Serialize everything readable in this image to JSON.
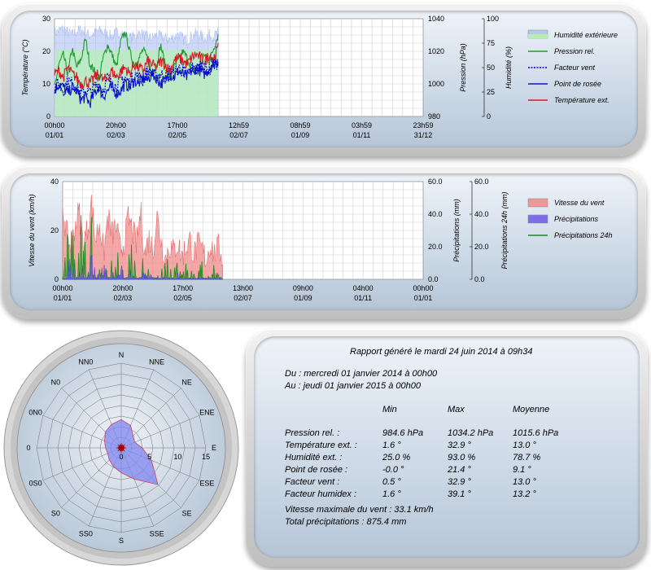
{
  "colors": {
    "humidity": "#a6b8f0",
    "humidity_green": "#b6f0b6",
    "pressure": "#1e9c2c",
    "windchill": "#0000cc",
    "dewpoint": "#1010d0",
    "temperature": "#d81826",
    "wind": "#f08a8a",
    "rain": "#6a5ae8",
    "rain24": "#1f8a1f",
    "rose_fill": "#7f86f0"
  },
  "chart_data": [
    {
      "type": "line",
      "title": "",
      "x_tick_labels": [
        "00h00\n01/01",
        "20h00\n02/03",
        "17h00\n02/05",
        "12h59\n02/07",
        "08h59\n01/09",
        "03h59\n01/11",
        "23h59\n31/12"
      ],
      "x_range_days": [
        0,
        365
      ],
      "data_end_day": 162,
      "axes": {
        "temperature": {
          "label": "Température (°C)",
          "range": [
            0,
            30
          ],
          "ticks": [
            "0",
            "10",
            "20",
            "30"
          ]
        },
        "pressure": {
          "label": "Pression (hPa)",
          "range": [
            980,
            1040
          ],
          "ticks": [
            "980",
            "1000",
            "1020",
            "1040"
          ]
        },
        "humidity": {
          "label": "Humidité (%)",
          "range": [
            0,
            100
          ],
          "ticks": [
            "0",
            "25",
            "50",
            "75",
            "100"
          ]
        }
      },
      "legend": [
        "Humidité extérieure",
        "Pression rel.",
        "Facteur vent",
        "Point de rosée",
        "Température ext."
      ],
      "series": [
        {
          "name": "Humidité extérieure",
          "axis": "humidity",
          "values": [
            85,
            88,
            90,
            86,
            84,
            87,
            89,
            86,
            83,
            85,
            88,
            87,
            84,
            82,
            86,
            85,
            83,
            80,
            82,
            85,
            84,
            81,
            80,
            83,
            82,
            80,
            79,
            81,
            84,
            80,
            78,
            82,
            85,
            83,
            80,
            84,
            82,
            86
          ]
        },
        {
          "name": "Pression rel.",
          "axis": "pressure",
          "values": [
            998,
            1012,
            1018,
            1006,
            1022,
            1010,
            1015,
            1028,
            1012,
            1008,
            1002,
            1016,
            1024,
            1018,
            1010,
            1026,
            1032,
            1020,
            1012,
            1015,
            1021,
            1016,
            1006,
            1010,
            1024,
            1012,
            1004,
            1010,
            1014,
            1020,
            1016,
            1010,
            1008,
            1012,
            1018,
            1014,
            1022,
            1030
          ]
        },
        {
          "name": "Facteur vent",
          "axis": "temperature",
          "values": [
            9,
            10,
            8,
            11,
            10,
            9,
            7,
            8,
            7,
            9,
            10,
            8,
            12,
            10,
            9,
            11,
            12,
            10,
            13,
            12,
            11,
            14,
            13,
            12,
            13,
            12,
            14,
            13,
            15,
            14,
            13,
            15,
            14,
            16,
            15,
            14,
            17,
            16
          ]
        },
        {
          "name": "Point de rosée",
          "axis": "temperature",
          "values": [
            8,
            10,
            9,
            7,
            9,
            8,
            5,
            6,
            4,
            7,
            9,
            6,
            8,
            9,
            7,
            8,
            10,
            9,
            11,
            10,
            12,
            11,
            13,
            12,
            10,
            11,
            13,
            12,
            14,
            13,
            12,
            14,
            15,
            14,
            13,
            15,
            16,
            17
          ]
        },
        {
          "name": "Température ext.",
          "axis": "temperature",
          "values": [
            13,
            14,
            12,
            15,
            13,
            12,
            10,
            11,
            10,
            12,
            13,
            11,
            12,
            14,
            12,
            14,
            15,
            13,
            16,
            15,
            14,
            17,
            16,
            15,
            17,
            16,
            14,
            17,
            18,
            17,
            16,
            18,
            19,
            18,
            17,
            19,
            18,
            21
          ]
        }
      ]
    },
    {
      "type": "area",
      "title": "",
      "x_tick_labels": [
        "00h00\n01/01",
        "20h00\n02/03",
        "17h00\n02/05",
        "13h00\n02/07",
        "09h00\n01/09",
        "04h00\n01/11",
        "00h00\n01/01"
      ],
      "x_range_days": [
        0,
        365
      ],
      "data_end_day": 162,
      "axes": {
        "wind": {
          "label": "Vitesse du vent (km/h)",
          "range": [
            0,
            40
          ],
          "ticks": [
            "0",
            "20",
            "40"
          ]
        },
        "rain": {
          "label": "Précipitations (mm)",
          "range": [
            0,
            60
          ],
          "ticks": [
            "0.0",
            "20.0",
            "40.0",
            "60.0"
          ]
        },
        "rain24": {
          "label": "Précipitations 24h (mm)",
          "range": [
            0,
            60
          ],
          "ticks": [
            "0.0",
            "20.0",
            "40.0",
            "60.0"
          ]
        }
      },
      "legend": [
        "Vitesse du vent",
        "Précipitations",
        "Précipitations 24h"
      ],
      "series": [
        {
          "name": "Vitesse du vent",
          "axis": "wind",
          "values": [
            30,
            18,
            12,
            22,
            28,
            14,
            20,
            31,
            16,
            24,
            10,
            26,
            18,
            22,
            12,
            15,
            25,
            20,
            14,
            28,
            10,
            17,
            12,
            26,
            16,
            8,
            14,
            11,
            15,
            9,
            13,
            16,
            10,
            14,
            12,
            8,
            15,
            10,
            13,
            9
          ]
        },
        {
          "name": "Précipitations",
          "axis": "rain",
          "values": [
            2,
            8,
            14,
            4,
            6,
            12,
            3,
            16,
            5,
            2,
            10,
            4,
            7,
            3,
            11,
            2,
            5,
            9,
            3,
            1,
            6,
            2,
            4,
            3,
            1,
            5,
            2,
            3,
            4,
            1,
            2,
            3,
            1,
            2,
            4,
            1,
            2,
            3,
            1,
            0
          ]
        },
        {
          "name": "Précipitations 24h",
          "axis": "rain24",
          "values": [
            10,
            28,
            40,
            12,
            20,
            49,
            8,
            45,
            15,
            6,
            30,
            12,
            20,
            9,
            32,
            6,
            18,
            26,
            10,
            4,
            22,
            7,
            14,
            10,
            3,
            18,
            6,
            12,
            14,
            4,
            8,
            10,
            3,
            6,
            12,
            4,
            5,
            8,
            3,
            2
          ]
        }
      ]
    },
    {
      "type": "radar",
      "title": "",
      "directions": [
        "N",
        "NNE",
        "NE",
        "ENE",
        "E",
        "ESE",
        "SE",
        "SSE",
        "S",
        "SS0",
        "S0",
        "0S0",
        "0",
        "0N0",
        "N0",
        "NN0"
      ],
      "ring_labels": [
        "0",
        "5",
        "10",
        "15"
      ],
      "range": [
        0,
        15
      ],
      "values": [
        5.0,
        4.3,
        3.0,
        2.6,
        3.7,
        5.8,
        9.2,
        6.0,
        4.4,
        3.6,
        3.0,
        2.6,
        2.8,
        3.2,
        4.0,
        4.5
      ]
    }
  ],
  "report": {
    "title": "Rapport généré le mardi 24 juin 2014 à 09h34",
    "from": "Du : mercredi 01 janvier 2014 à 00h00",
    "to": "Au : jeudi 01 janvier 2015 à 00h00",
    "columns": [
      "Min",
      "Max",
      "Moyenne"
    ],
    "rows": [
      {
        "label": "Pression rel. :",
        "min": "984.6 hPa",
        "max": "1034.2 hPa",
        "mean": "1015.6 hPa"
      },
      {
        "label": "Température ext. :",
        "min": "1.6 °",
        "max": "32.9 °",
        "mean": "13.0 °"
      },
      {
        "label": "Humidité ext. :",
        "min": "25.0 %",
        "max": "93.0 %",
        "mean": "78.7 %"
      },
      {
        "label": "Point de rosée :",
        "min": "-0.0 °",
        "max": "21.4 °",
        "mean": "9.1 °"
      },
      {
        "label": "Facteur vent :",
        "min": "0.5 °",
        "max": "32.9 °",
        "mean": "13.0 °"
      },
      {
        "label": "Facteur humidex :",
        "min": "1.6 °",
        "max": "39.1 °",
        "mean": "13.2 °"
      }
    ],
    "max_wind": "Vitesse maximale du vent : 33.1 km/h",
    "total_rain": "Total précipitations : 875.4 mm"
  }
}
